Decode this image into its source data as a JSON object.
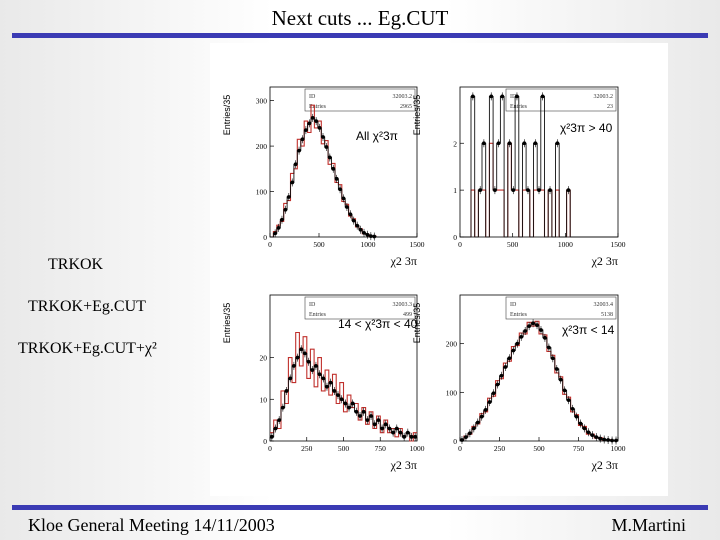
{
  "slide": {
    "title": "Next cuts ... Eg.CUT",
    "footer_left": "Kloe General Meeting 14/11/2003",
    "footer_right": "M.Martini",
    "accent_color": "#3b3bb4"
  },
  "labels": {
    "trkok": "TRKOK",
    "trkok_egcut": "TRKOK+Eg.CUT",
    "trkok_egcut_chi2": "TRKOK+Eg.CUT+χ²"
  },
  "chart_data": [
    {
      "type": "histogram",
      "panel": "top-left",
      "annotation": "All χ²3π",
      "ylabel": "Entries/35",
      "xlabel": "χ2 3π",
      "xlim": [
        0,
        1500
      ],
      "ylim": [
        0,
        330
      ],
      "xticks": [
        "0",
        "500",
        "1000",
        "1500"
      ],
      "yticks": [
        "0",
        "100",
        "200",
        "300"
      ],
      "stats": {
        "ID": "32003.2",
        "Entries": "2965"
      },
      "black": [
        0,
        8,
        20,
        38,
        60,
        88,
        120,
        160,
        190,
        215,
        235,
        250,
        262,
        255,
        240,
        220,
        198,
        175,
        150,
        128,
        105,
        85,
        66,
        50,
        36,
        25,
        16,
        9,
        5,
        2,
        1,
        0,
        0,
        0,
        0,
        0,
        0,
        0,
        0,
        0,
        0,
        0,
        0
      ],
      "red": [
        0,
        12,
        26,
        34,
        74,
        80,
        140,
        150,
        215,
        200,
        255,
        230,
        290,
        240,
        255,
        205,
        212,
        160,
        162,
        120,
        115,
        78,
        72,
        46,
        40,
        22,
        18,
        7,
        6,
        1,
        2,
        0,
        0,
        0,
        0,
        0,
        0,
        0,
        0,
        0,
        0,
        0,
        0
      ]
    },
    {
      "type": "histogram",
      "panel": "top-right",
      "annotation": "χ²3π > 40",
      "ylabel": "Entries/35",
      "xlabel": "χ2 3π",
      "xlim": [
        0,
        1500
      ],
      "ylim": [
        0,
        3.2
      ],
      "xticks": [
        "0",
        "500",
        "1000",
        "1500"
      ],
      "yticks": [
        "0",
        "1",
        "2"
      ],
      "stats": {
        "ID": "32003.2",
        "Entries": "23"
      },
      "black": [
        0,
        0,
        0,
        3,
        0,
        1,
        2,
        0,
        3,
        1,
        2,
        3,
        0,
        2,
        1,
        3,
        0,
        2,
        1,
        0,
        2,
        1,
        3,
        0,
        1,
        0,
        2,
        0,
        0,
        1,
        0,
        0,
        0,
        0,
        0,
        0,
        0,
        0,
        0,
        0,
        0,
        0,
        0
      ],
      "red": [
        0,
        0,
        0,
        1,
        0,
        1,
        1,
        0,
        2,
        1,
        1,
        1,
        0,
        2,
        1,
        1,
        0,
        1,
        1,
        0,
        1,
        1,
        1,
        0,
        1,
        0,
        1,
        0,
        0,
        1,
        0,
        0,
        0,
        0,
        0,
        0,
        0,
        0,
        0,
        0,
        0,
        0,
        0
      ]
    },
    {
      "type": "histogram",
      "panel": "bottom-left",
      "annotation": "14 < χ²3π < 40",
      "ylabel": "Entries/35",
      "xlabel": "χ2 3π",
      "xlim": [
        0,
        1000
      ],
      "ylim": [
        0,
        35
      ],
      "xticks": [
        "0",
        "250",
        "500",
        "750",
        "1000"
      ],
      "yticks": [
        "0",
        "10",
        "20"
      ],
      "stats": {
        "ID": "32003.3",
        "Entries": "499"
      },
      "black": [
        1,
        3,
        5,
        8,
        12,
        15,
        18,
        20,
        22,
        21,
        19,
        17,
        18,
        16,
        15,
        13,
        14,
        12,
        11,
        10,
        9,
        8,
        9,
        7,
        6,
        7,
        5,
        6,
        4,
        5,
        3,
        4,
        3,
        2,
        3,
        2,
        1,
        2,
        1,
        1
      ],
      "red": [
        2,
        5,
        3,
        12,
        9,
        20,
        14,
        26,
        18,
        25,
        15,
        22,
        13,
        20,
        12,
        17,
        11,
        16,
        9,
        14,
        7,
        11,
        8,
        9,
        5,
        8,
        4,
        7,
        3,
        6,
        2,
        5,
        2,
        3,
        1,
        3,
        1,
        2,
        0,
        2
      ]
    },
    {
      "type": "histogram",
      "panel": "bottom-right",
      "annotation": "χ²3π < 14",
      "ylabel": "Entries/35",
      "xlabel": "χ2 3π",
      "xlim": [
        0,
        1000
      ],
      "ylim": [
        0,
        300
      ],
      "xticks": [
        "0",
        "250",
        "500",
        "750",
        "1000"
      ],
      "yticks": [
        "0",
        "100",
        "200"
      ],
      "stats": {
        "ID": "32003.4",
        "Entries": "5138"
      },
      "black": [
        2,
        8,
        16,
        26,
        38,
        50,
        64,
        80,
        98,
        116,
        134,
        152,
        170,
        186,
        200,
        214,
        226,
        236,
        242,
        238,
        228,
        212,
        192,
        170,
        148,
        126,
        104,
        84,
        66,
        50,
        36,
        26,
        18,
        12,
        8,
        5,
        3,
        2,
        1,
        1
      ],
      "red": [
        3,
        10,
        14,
        30,
        35,
        56,
        60,
        88,
        92,
        124,
        128,
        160,
        164,
        194,
        196,
        222,
        220,
        244,
        236,
        246,
        220,
        218,
        184,
        176,
        140,
        132,
        96,
        90,
        60,
        54,
        32,
        30,
        14,
        14,
        6,
        7,
        2,
        3,
        1,
        1
      ]
    }
  ]
}
